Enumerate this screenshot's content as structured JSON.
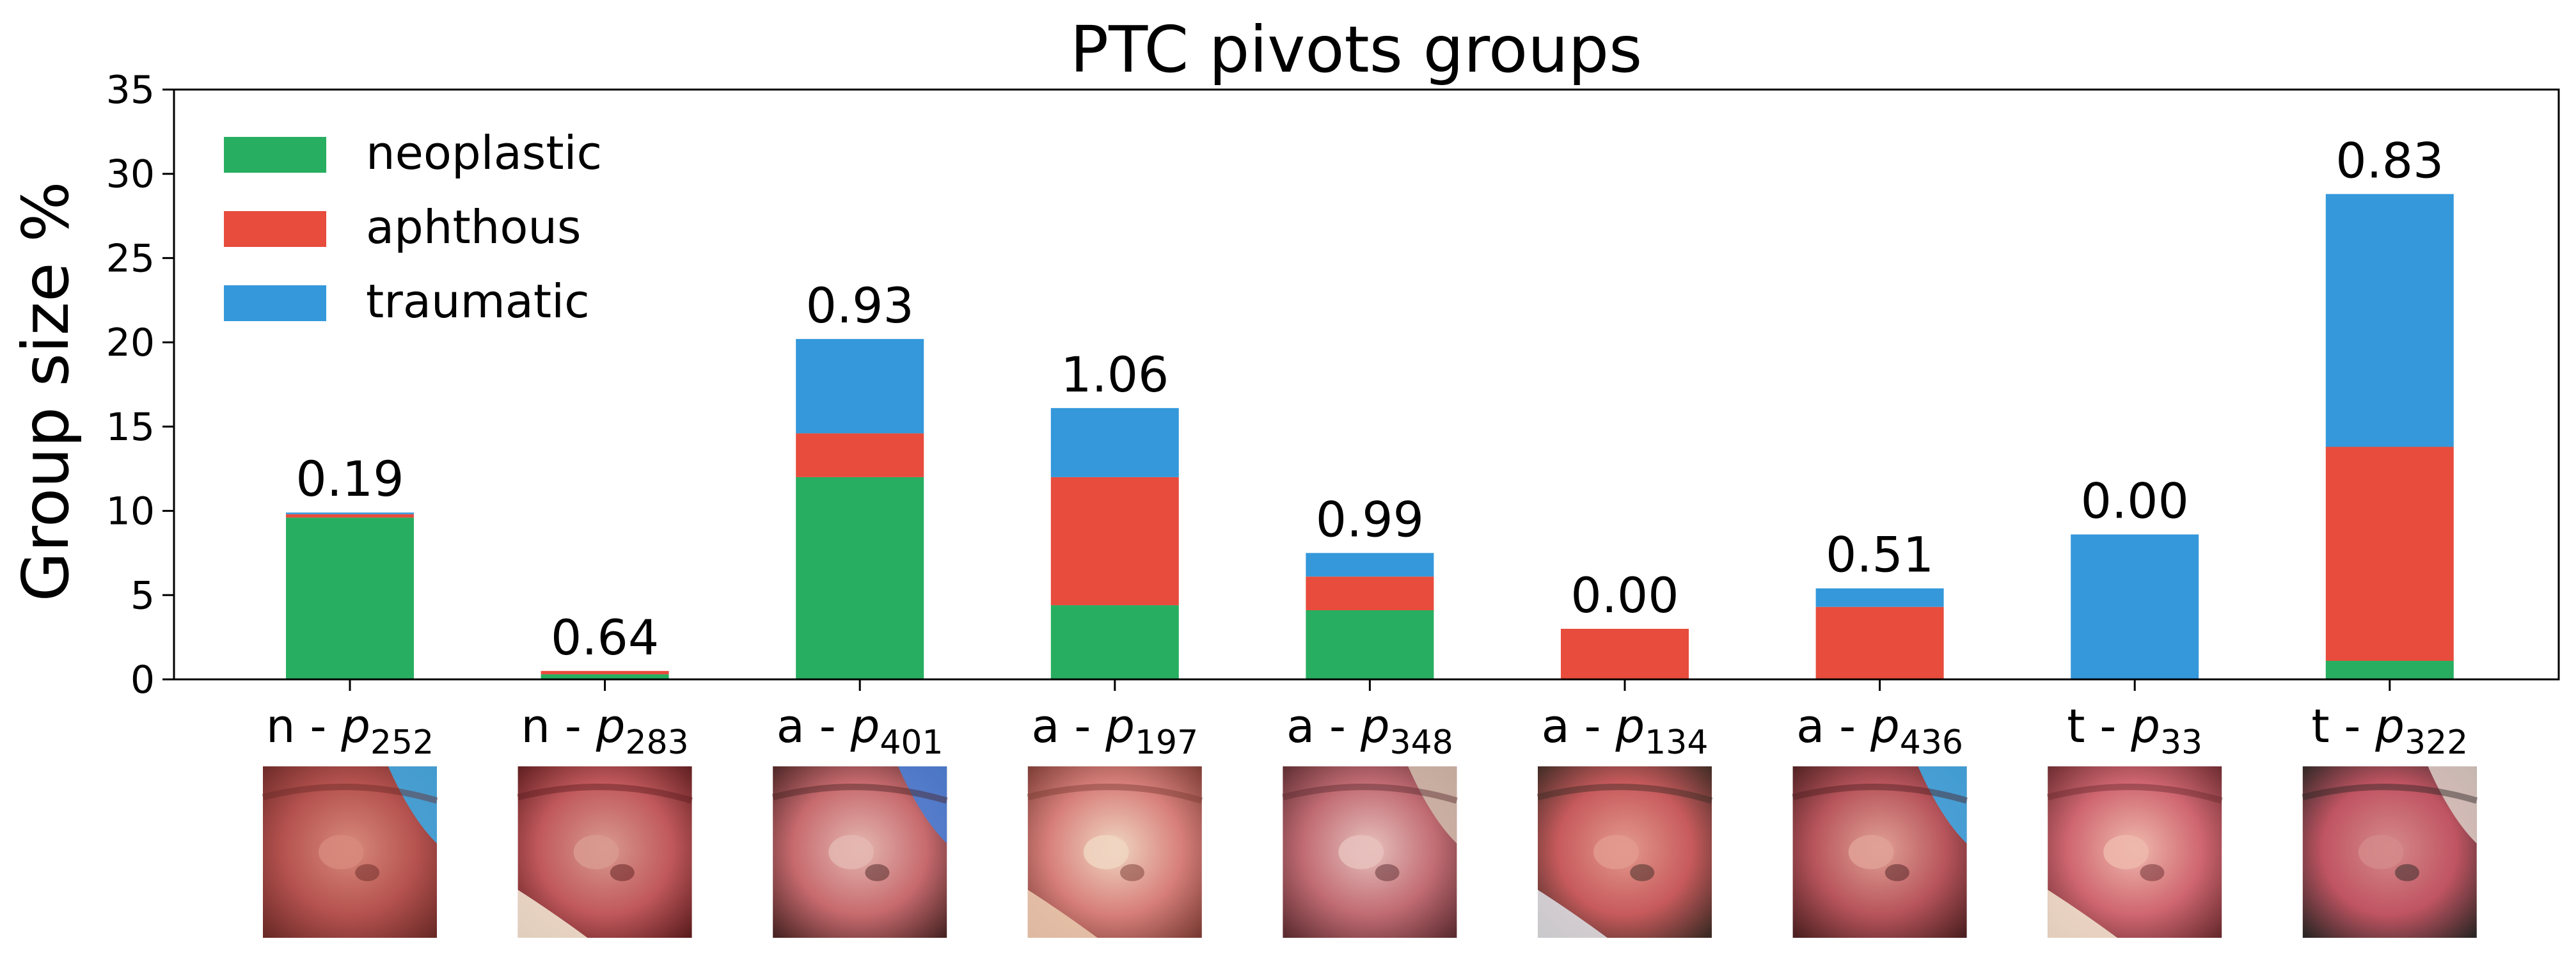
{
  "chart_data": {
    "type": "bar",
    "stacked": true,
    "title": "PTC pivots groups",
    "xlabel": "",
    "ylabel": "Group size %",
    "ylim": [
      0,
      35
    ],
    "yticks": [
      0,
      5,
      10,
      15,
      20,
      25,
      30,
      35
    ],
    "grid": false,
    "legend_position": "top-left",
    "categories": [
      {
        "prefix": "n",
        "sub": "252"
      },
      {
        "prefix": "n",
        "sub": "283"
      },
      {
        "prefix": "a",
        "sub": "401"
      },
      {
        "prefix": "a",
        "sub": "197"
      },
      {
        "prefix": "a",
        "sub": "348"
      },
      {
        "prefix": "a",
        "sub": "134"
      },
      {
        "prefix": "a",
        "sub": "436"
      },
      {
        "prefix": "t",
        "sub": "33"
      },
      {
        "prefix": "t",
        "sub": "322"
      }
    ],
    "series": [
      {
        "name": "neoplastic",
        "color": "#27ae60",
        "values": [
          9.6,
          0.3,
          12.0,
          4.4,
          4.1,
          0.0,
          0.0,
          0.0,
          1.1
        ]
      },
      {
        "name": "aphthous",
        "color": "#e74c3c",
        "values": [
          0.2,
          0.2,
          2.6,
          7.6,
          2.0,
          3.0,
          4.3,
          0.0,
          12.7
        ]
      },
      {
        "name": "traumatic",
        "color": "#3498db",
        "values": [
          0.1,
          0.0,
          5.6,
          4.1,
          1.4,
          0.0,
          1.1,
          8.6,
          15.0
        ]
      }
    ],
    "bar_labels": [
      "0.19",
      "0.64",
      "0.93",
      "1.06",
      "0.99",
      "0.00",
      "0.51",
      "0.00",
      "0.83"
    ],
    "thumbnail_images": [
      {
        "icon": "oral-lesion-photo",
        "tones": [
          "#b5524f",
          "#d88a7c",
          "#6b2a27",
          "#3ea7e0"
        ]
      },
      {
        "icon": "oral-lesion-photo",
        "tones": [
          "#c0585c",
          "#d99a8f",
          "#5d1d1e",
          "#efe2cf"
        ]
      },
      {
        "icon": "oral-lesion-photo",
        "tones": [
          "#c76a6e",
          "#e4b7b0",
          "#4a2424",
          "#4a7fd6"
        ]
      },
      {
        "icon": "oral-lesion-photo",
        "tones": [
          "#d77f7a",
          "#f0d6c2",
          "#7a3b34",
          "#e9c7ad"
        ]
      },
      {
        "icon": "oral-lesion-photo",
        "tones": [
          "#c16b73",
          "#e7c1bd",
          "#5c2c30",
          "#cdb7a9"
        ]
      },
      {
        "icon": "oral-lesion-photo",
        "tones": [
          "#c75a5c",
          "#e39a8e",
          "#3c2a23",
          "#d9dadf"
        ]
      },
      {
        "icon": "oral-lesion-photo",
        "tones": [
          "#b7545b",
          "#e1a196",
          "#4d2021",
          "#3fa8e3"
        ]
      },
      {
        "icon": "oral-lesion-photo",
        "tones": [
          "#cf6670",
          "#efb9ad",
          "#6a2b2f",
          "#f0e0cc"
        ]
      },
      {
        "icon": "oral-lesion-photo",
        "tones": [
          "#c05462",
          "#d58a8a",
          "#2c2624",
          "#d7c6c0"
        ]
      }
    ]
  }
}
